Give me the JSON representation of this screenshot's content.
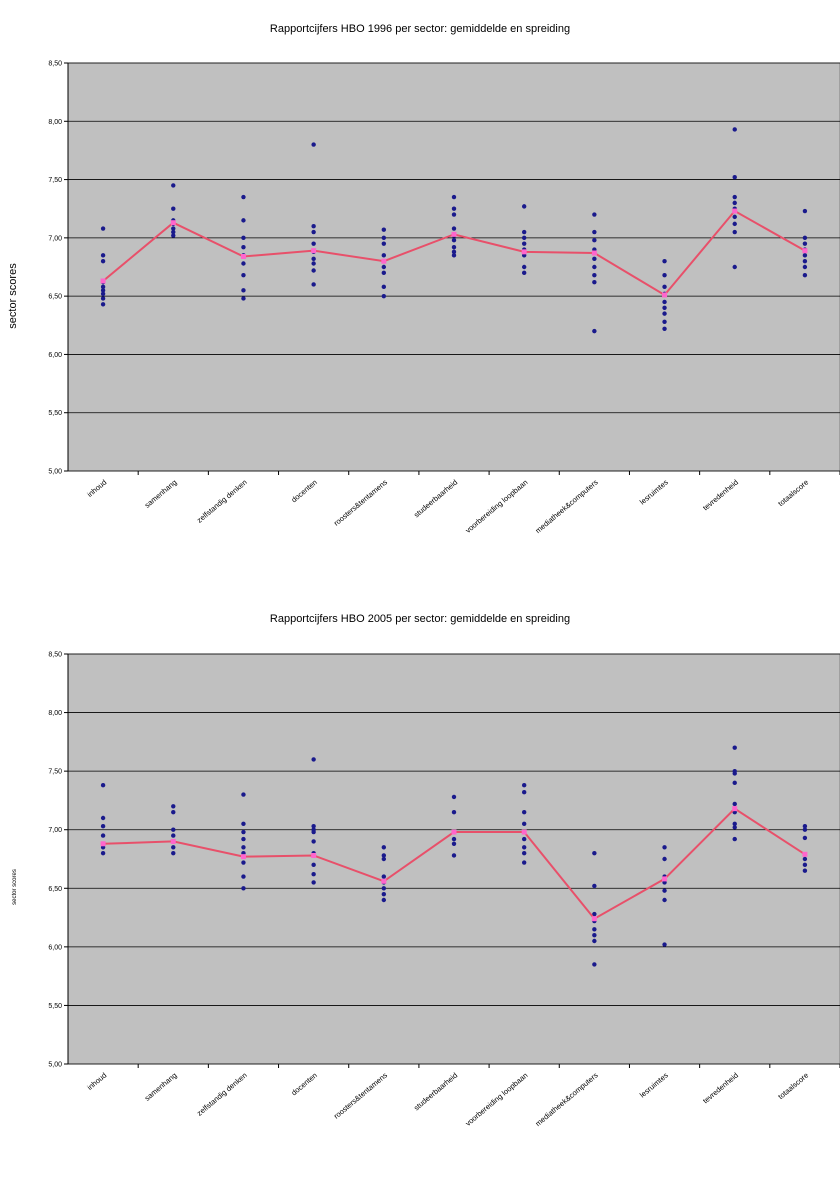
{
  "chart_data": [
    {
      "type": "scatter",
      "title": "Rapportcijfers HBO 1996 per sector: gemiddelde en spreiding",
      "ylabel": "sector scores",
      "ylim": [
        5.0,
        8.5
      ],
      "y_ticks": [
        "5,00",
        "5,50",
        "6,00",
        "6,50",
        "7,00",
        "7,50",
        "8,00",
        "8,50"
      ],
      "categories": [
        "inhoud",
        "samenhang",
        "zelfstandig denken",
        "docenten",
        "roosters&tentamens",
        "studeerbaarheid",
        "voorbereiding loopbaan",
        "mediatheek&computers",
        "lesruimtes",
        "tevredenheid",
        "totaalscore"
      ],
      "series": [
        {
          "values": [
            [
              7.08,
              6.85,
              6.8,
              6.62,
              6.58,
              6.55,
              6.52,
              6.48,
              6.43
            ],
            [
              7.45,
              7.25,
              7.15,
              7.12,
              7.08,
              7.05,
              7.02
            ],
            [
              7.35,
              7.15,
              7.0,
              6.92,
              6.85,
              6.78,
              6.68,
              6.55,
              6.48
            ],
            [
              7.8,
              7.1,
              7.05,
              6.95,
              6.88,
              6.82,
              6.78,
              6.72,
              6.6
            ],
            [
              7.07,
              7.0,
              6.95,
              6.85,
              6.75,
              6.7,
              6.58,
              6.5
            ],
            [
              7.35,
              7.25,
              7.2,
              7.08,
              7.02,
              6.98,
              6.92,
              6.88,
              6.85
            ],
            [
              7.27,
              7.05,
              7.0,
              6.95,
              6.9,
              6.85,
              6.75,
              6.7
            ],
            [
              7.2,
              7.05,
              6.98,
              6.9,
              6.82,
              6.75,
              6.68,
              6.62,
              6.2
            ],
            [
              6.8,
              6.68,
              6.58,
              6.52,
              6.45,
              6.4,
              6.35,
              6.28,
              6.22
            ],
            [
              7.93,
              7.52,
              7.35,
              7.3,
              7.25,
              7.18,
              7.12,
              7.05,
              6.75
            ],
            [
              7.23,
              7.0,
              6.95,
              6.9,
              6.85,
              6.8,
              6.75,
              6.68
            ]
          ]
        },
        {
          "values": [
            6.63,
            7.13,
            6.84,
            6.89,
            6.8,
            7.03,
            6.88,
            6.87,
            6.51,
            7.23,
            6.89
          ]
        }
      ]
    },
    {
      "type": "scatter",
      "title": "Rapportcijfers HBO 2005 per sector: gemiddelde en spreiding",
      "ylabel": "sector scores",
      "ylim": [
        5.0,
        8.5
      ],
      "y_ticks": [
        "5,00",
        "5,50",
        "6,00",
        "6,50",
        "7,00",
        "7,50",
        "8,00",
        "8,50"
      ],
      "categories": [
        "inhoud",
        "samenhang",
        "zelfstandig denken",
        "docenten",
        "roosters&tentamens",
        "studeerbaarheid",
        "voorbereiding loopbaan",
        "mediatheek&computers",
        "lesruimtes",
        "tevredenheid",
        "totaalscore"
      ],
      "series": [
        {
          "values": [
            [
              7.38,
              7.1,
              7.03,
              6.95,
              6.88,
              6.85,
              6.8
            ],
            [
              7.2,
              7.15,
              7.0,
              6.95,
              6.9,
              6.85,
              6.8
            ],
            [
              7.3,
              7.05,
              6.98,
              6.92,
              6.85,
              6.8,
              6.72,
              6.6,
              6.5
            ],
            [
              7.6,
              7.03,
              7.0,
              6.98,
              6.9,
              6.8,
              6.7,
              6.62,
              6.55
            ],
            [
              6.85,
              6.78,
              6.75,
              6.6,
              6.55,
              6.5,
              6.45,
              6.4
            ],
            [
              7.28,
              7.15,
              6.98,
              6.92,
              6.88,
              6.78
            ],
            [
              7.38,
              7.32,
              7.15,
              7.05,
              6.98,
              6.92,
              6.85,
              6.8,
              6.72
            ],
            [
              6.8,
              6.52,
              6.28,
              6.22,
              6.15,
              6.1,
              6.05,
              5.85
            ],
            [
              6.85,
              6.75,
              6.6,
              6.55,
              6.48,
              6.4,
              6.02
            ],
            [
              7.7,
              7.5,
              7.48,
              7.4,
              7.22,
              7.15,
              7.05,
              7.02,
              6.92
            ],
            [
              7.03,
              7.0,
              6.93,
              6.75,
              6.7,
              6.65
            ]
          ]
        },
        {
          "values": [
            6.88,
            6.9,
            6.77,
            6.78,
            6.56,
            6.98,
            6.98,
            6.24,
            6.58,
            7.18,
            6.79
          ]
        }
      ]
    }
  ]
}
